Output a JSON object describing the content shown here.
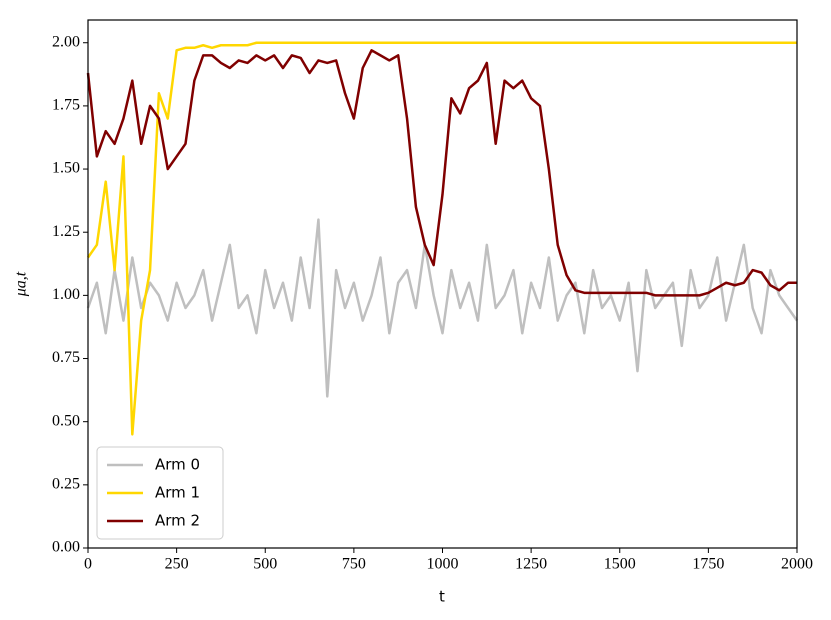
{
  "chart_data": {
    "type": "line",
    "xlabel": "t",
    "ylabel": "μa,t",
    "x": [
      0,
      25,
      50,
      75,
      100,
      125,
      150,
      175,
      200,
      225,
      250,
      275,
      300,
      325,
      350,
      375,
      400,
      425,
      450,
      475,
      500,
      525,
      550,
      575,
      600,
      625,
      650,
      675,
      700,
      725,
      750,
      775,
      800,
      825,
      850,
      875,
      900,
      925,
      950,
      975,
      1000,
      1025,
      1050,
      1075,
      1100,
      1125,
      1150,
      1175,
      1200,
      1225,
      1250,
      1275,
      1300,
      1325,
      1350,
      1375,
      1400,
      1425,
      1450,
      1475,
      1500,
      1525,
      1550,
      1575,
      1600,
      1625,
      1650,
      1675,
      1700,
      1725,
      1750,
      1775,
      1800,
      1825,
      1850,
      1875,
      1900,
      1925,
      1950,
      1975,
      2000
    ],
    "series": [
      {
        "name": "Arm 0",
        "color": "#bfbfbf",
        "values": [
          0.95,
          1.05,
          0.85,
          1.1,
          0.9,
          1.15,
          0.95,
          1.05,
          1.0,
          0.9,
          1.05,
          0.95,
          1.0,
          1.1,
          0.9,
          1.05,
          1.2,
          0.95,
          1.0,
          0.85,
          1.1,
          0.95,
          1.05,
          0.9,
          1.15,
          0.95,
          1.3,
          0.6,
          1.1,
          0.95,
          1.05,
          0.9,
          1.0,
          1.15,
          0.85,
          1.05,
          1.1,
          0.95,
          1.2,
          1.0,
          0.85,
          1.1,
          0.95,
          1.05,
          0.9,
          1.2,
          0.95,
          1.0,
          1.1,
          0.85,
          1.05,
          0.95,
          1.15,
          0.9,
          1.0,
          1.05,
          0.85,
          1.1,
          0.95,
          1.0,
          0.9,
          1.05,
          0.7,
          1.1,
          0.95,
          1.0,
          1.05,
          0.8,
          1.1,
          0.95,
          1.0,
          1.15,
          0.9,
          1.05,
          1.2,
          0.95,
          0.85,
          1.1,
          1.0,
          0.95,
          0.9
        ]
      },
      {
        "name": "Arm 1",
        "color": "#ffd700",
        "values": [
          1.15,
          1.2,
          1.45,
          1.1,
          1.55,
          0.45,
          0.9,
          1.1,
          1.8,
          1.7,
          1.97,
          1.98,
          1.98,
          1.99,
          1.98,
          1.99,
          1.99,
          1.99,
          1.99,
          2.0,
          2.0,
          2.0,
          2.0,
          2.0,
          2.0,
          2.0,
          2.0,
          2.0,
          2.0,
          2.0,
          2.0,
          2.0,
          2.0,
          2.0,
          2.0,
          2.0,
          2.0,
          2.0,
          2.0,
          2.0,
          2.0,
          2.0,
          2.0,
          2.0,
          2.0,
          2.0,
          2.0,
          2.0,
          2.0,
          2.0,
          2.0,
          2.0,
          2.0,
          2.0,
          2.0,
          2.0,
          2.0,
          2.0,
          2.0,
          2.0,
          2.0,
          2.0,
          2.0,
          2.0,
          2.0,
          2.0,
          2.0,
          2.0,
          2.0,
          2.0,
          2.0,
          2.0,
          2.0,
          2.0,
          2.0,
          2.0,
          2.0,
          2.0,
          2.0,
          2.0,
          2.0
        ]
      },
      {
        "name": "Arm 2",
        "color": "#800000",
        "values": [
          1.88,
          1.55,
          1.65,
          1.6,
          1.7,
          1.85,
          1.6,
          1.75,
          1.7,
          1.5,
          1.55,
          1.6,
          1.85,
          1.95,
          1.95,
          1.92,
          1.9,
          1.93,
          1.92,
          1.95,
          1.93,
          1.95,
          1.9,
          1.95,
          1.94,
          1.88,
          1.93,
          1.92,
          1.93,
          1.8,
          1.7,
          1.9,
          1.97,
          1.95,
          1.93,
          1.95,
          1.7,
          1.35,
          1.2,
          1.12,
          1.4,
          1.78,
          1.72,
          1.82,
          1.85,
          1.92,
          1.6,
          1.85,
          1.82,
          1.85,
          1.78,
          1.75,
          1.5,
          1.2,
          1.08,
          1.02,
          1.01,
          1.01,
          1.01,
          1.01,
          1.01,
          1.01,
          1.01,
          1.01,
          1.0,
          1.0,
          1.0,
          1.0,
          1.0,
          1.0,
          1.01,
          1.03,
          1.05,
          1.04,
          1.05,
          1.1,
          1.09,
          1.04,
          1.02,
          1.05,
          1.05
        ]
      }
    ],
    "xlim": [
      0,
      2000
    ],
    "xticks": [
      0,
      250,
      500,
      750,
      1000,
      1250,
      1500,
      1750,
      2000
    ],
    "ylim": [
      0,
      2.09
    ],
    "yticks": [
      {
        "value": 0,
        "label": "0.00"
      },
      {
        "value": 0.25,
        "label": "0.25"
      },
      {
        "value": 0.5,
        "label": "0.50"
      },
      {
        "value": 0.75,
        "label": "0.75"
      },
      {
        "value": 1,
        "label": "1.00"
      },
      {
        "value": 1.25,
        "label": "1.25"
      },
      {
        "value": 1.5,
        "label": "1.50"
      },
      {
        "value": 1.75,
        "label": "1.75"
      },
      {
        "value": 2,
        "label": "2.00"
      }
    ],
    "legend": "lower left"
  }
}
